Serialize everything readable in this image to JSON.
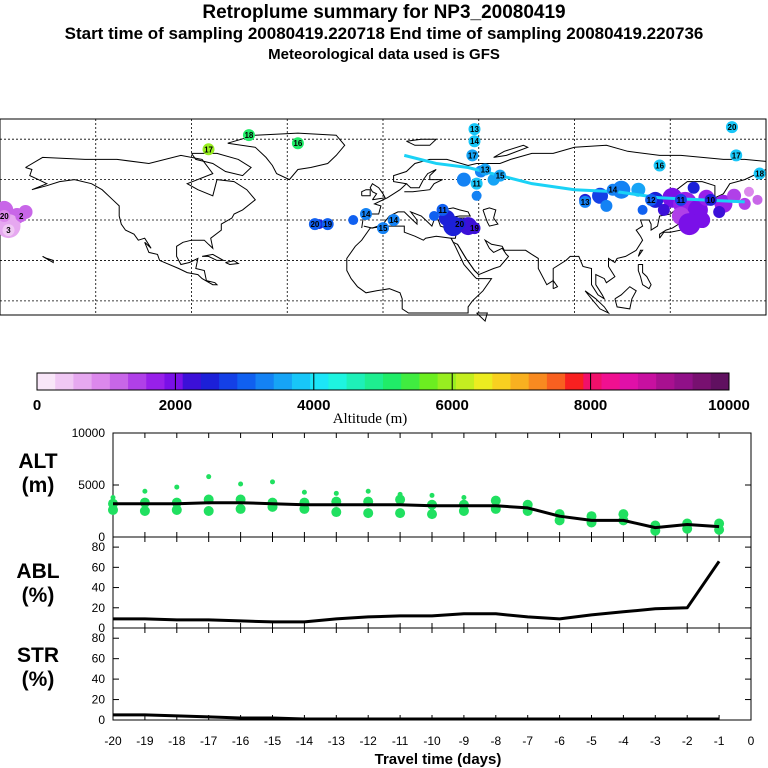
{
  "header": {
    "title": "Retroplume summary for NP3_20080419",
    "times": "Start time of sampling 20080419.220718     End time of sampling 20080419.220736",
    "met": "Meteorological data used is GFS"
  },
  "map": {
    "plume_labels": [
      {
        "text": "20",
        "lon": -178,
        "lat": 42,
        "alt": 1000
      },
      {
        "text": "3",
        "lon": -176,
        "lat": 35,
        "alt": 500
      },
      {
        "text": "2",
        "lon": -170,
        "lat": 42,
        "alt": 1300
      },
      {
        "text": "18",
        "lon": -63,
        "lat": 82,
        "alt": 5200
      },
      {
        "text": "16",
        "lon": -40,
        "lat": 78,
        "alt": 5000
      },
      {
        "text": "17",
        "lon": -82,
        "lat": 75,
        "alt": 6000
      },
      {
        "text": "20",
        "lon": -32,
        "lat": 38,
        "alt": 2900
      },
      {
        "text": "19",
        "lon": -26,
        "lat": 38,
        "alt": 2900
      },
      {
        "text": "14",
        "lon": -8,
        "lat": 43,
        "alt": 3200
      },
      {
        "text": "15",
        "lon": 0,
        "lat": 36,
        "alt": 3300
      },
      {
        "text": "14",
        "lon": 5,
        "lat": 40,
        "alt": 3300
      },
      {
        "text": "11",
        "lon": 28,
        "lat": 45,
        "alt": 3000
      },
      {
        "text": "20",
        "lon": 36,
        "lat": 38,
        "alt": 2500
      },
      {
        "text": "19",
        "lon": 43,
        "lat": 36,
        "alt": 2300
      },
      {
        "text": "13",
        "lon": 43,
        "lat": 85,
        "alt": 3700
      },
      {
        "text": "14",
        "lon": 43,
        "lat": 79,
        "alt": 3700
      },
      {
        "text": "17",
        "lon": 42,
        "lat": 72,
        "alt": 3600
      },
      {
        "text": "13",
        "lon": 48,
        "lat": 65,
        "alt": 3600
      },
      {
        "text": "11",
        "lon": 44,
        "lat": 58,
        "alt": 3700
      },
      {
        "text": "15",
        "lon": 55,
        "lat": 62,
        "alt": 3600
      },
      {
        "text": "14",
        "lon": 108,
        "lat": 55,
        "alt": 3400
      },
      {
        "text": "13",
        "lon": 95,
        "lat": 49,
        "alt": 3300
      },
      {
        "text": "12",
        "lon": 126,
        "lat": 50,
        "alt": 3100
      },
      {
        "text": "11",
        "lon": 140,
        "lat": 50,
        "alt": 2800
      },
      {
        "text": "10",
        "lon": 154,
        "lat": 50,
        "alt": 2500
      },
      {
        "text": "20",
        "lon": 164,
        "lat": 86,
        "alt": 3700
      },
      {
        "text": "17",
        "lon": 166,
        "lat": 72,
        "alt": 3800
      },
      {
        "text": "18",
        "lon": 177,
        "lat": 63,
        "alt": 3800
      },
      {
        "text": "16",
        "lon": 130,
        "lat": 67,
        "alt": 3800
      }
    ]
  },
  "colorbar": {
    "tick_labels": [
      "0",
      "2000",
      "4000",
      "6000",
      "8000",
      "10000"
    ],
    "title": "Altitude (m)",
    "colors": [
      "#f8e6f8",
      "#f0c8f4",
      "#e6a8f0",
      "#dc88ec",
      "#c866e8",
      "#b040e8",
      "#9820ea",
      "#7a10e8",
      "#3c10d8",
      "#1c20d8",
      "#1440e6",
      "#1060f0",
      "#1482f4",
      "#16a4f6",
      "#18c6f8",
      "#1ce6f8",
      "#1ef4e0",
      "#1ef0b8",
      "#1eee90",
      "#20ec68",
      "#40ec40",
      "#6cee20",
      "#98ee20",
      "#c4ee20",
      "#ecec20",
      "#f8d020",
      "#f8b020",
      "#f88a20",
      "#f86020",
      "#f82020",
      "#f0106a",
      "#f01090",
      "#e010a8",
      "#c810a0",
      "#a81090",
      "#901088",
      "#781070",
      "#601060"
    ]
  },
  "chart_data": [
    {
      "type": "line",
      "panel": "ALT",
      "ylabel": "ALT\n(m)",
      "ylim": [
        0,
        10000
      ],
      "yticks": [
        "10000",
        "5000",
        "0"
      ],
      "x": [
        -20,
        -19,
        -18,
        -17,
        -16,
        -15,
        -14,
        -13,
        -12,
        -11,
        -10,
        -9,
        -8,
        -7,
        -6,
        -5,
        -4,
        -3,
        -2,
        -1
      ],
      "median": [
        3200,
        3200,
        3200,
        3300,
        3300,
        3200,
        3100,
        3100,
        3100,
        3100,
        3000,
        3000,
        3000,
        2800,
        2000,
        1600,
        1600,
        900,
        1200,
        1000
      ],
      "scatter": [
        {
          "x": -20,
          "y": [
            2600,
            3200,
            3800
          ]
        },
        {
          "x": -19,
          "y": [
            2500,
            3300,
            4400
          ]
        },
        {
          "x": -18,
          "y": [
            2600,
            3300,
            4800
          ]
        },
        {
          "x": -17,
          "y": [
            2500,
            3600,
            5800
          ]
        },
        {
          "x": -16,
          "y": [
            2700,
            3600,
            5100
          ]
        },
        {
          "x": -15,
          "y": [
            2900,
            3300,
            5300
          ]
        },
        {
          "x": -14,
          "y": [
            2700,
            3300,
            4300
          ]
        },
        {
          "x": -13,
          "y": [
            2400,
            3400,
            4200
          ]
        },
        {
          "x": -12,
          "y": [
            2300,
            3400,
            4400
          ]
        },
        {
          "x": -11,
          "y": [
            2300,
            3600,
            4100
          ]
        },
        {
          "x": -10,
          "y": [
            2200,
            3100,
            4000
          ]
        },
        {
          "x": -9,
          "y": [
            2500,
            3100,
            3800
          ]
        },
        {
          "x": -8,
          "y": [
            2700,
            3500
          ]
        },
        {
          "x": -7,
          "y": [
            2500,
            3100
          ]
        },
        {
          "x": -6,
          "y": [
            1600,
            2200
          ]
        },
        {
          "x": -5,
          "y": [
            1400,
            2000
          ]
        },
        {
          "x": -4,
          "y": [
            1600,
            2200
          ]
        },
        {
          "x": -3,
          "y": [
            600,
            1100
          ]
        },
        {
          "x": -2,
          "y": [
            800,
            1300
          ]
        },
        {
          "x": -1,
          "y": [
            700,
            1300
          ]
        }
      ]
    },
    {
      "type": "line",
      "panel": "ABL",
      "ylabel": "ABL\n(%)",
      "ylim": [
        0,
        90
      ],
      "yticks": [
        "80",
        "60",
        "40",
        "20",
        "0"
      ],
      "x": [
        -20,
        -19,
        -18,
        -17,
        -16,
        -15,
        -14,
        -13,
        -12,
        -11,
        -10,
        -9,
        -8,
        -7,
        -6,
        -5,
        -4,
        -3,
        -2,
        -1
      ],
      "values": [
        9,
        9,
        8,
        8,
        7,
        6,
        6,
        9,
        11,
        12,
        12,
        14,
        14,
        11,
        9,
        13,
        16,
        19,
        20,
        66
      ]
    },
    {
      "type": "line",
      "panel": "STR",
      "ylabel": "STR\n(%)",
      "ylim": [
        0,
        90
      ],
      "yticks": [
        "80",
        "60",
        "40",
        "20",
        "0"
      ],
      "x": [
        -20,
        -19,
        -18,
        -17,
        -16,
        -15,
        -14,
        -13,
        -12,
        -11,
        -10,
        -9,
        -8,
        -7,
        -6,
        -5,
        -4,
        -3,
        -2,
        -1
      ],
      "values": [
        5,
        5,
        4,
        3,
        2,
        2,
        1,
        1,
        1,
        1,
        1,
        1,
        1,
        1,
        1,
        1,
        1,
        1,
        1,
        1
      ],
      "xticks": [
        "-20",
        "-19",
        "-18",
        "-17",
        "-16",
        "-15",
        "-14",
        "-13",
        "-12",
        "-11",
        "-10",
        "-9",
        "-8",
        "-7",
        "-6",
        "-5",
        "-4",
        "-3",
        "-2",
        "-1",
        "0"
      ],
      "xlabel": "Travel time (days)"
    }
  ]
}
